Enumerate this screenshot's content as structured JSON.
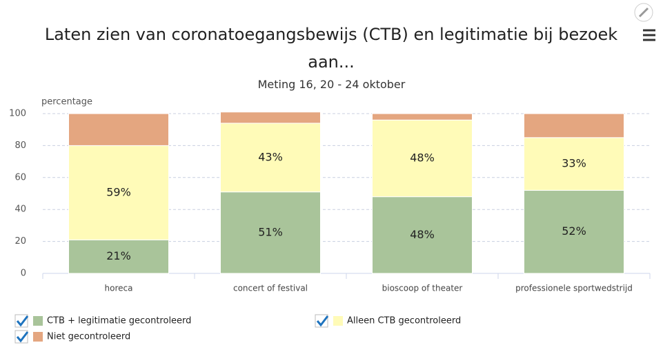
{
  "chart_data": {
    "type": "stacked_bar",
    "title": "Laten zien van coronatoegangsbewijs (CTB) en legitimatie bij bezoek aan...",
    "subtitle": "Meting 16, 20 - 24 oktober",
    "y_axis_label": "percentage",
    "categories": [
      "horeca",
      "concert of festival",
      "bioscoop of theater",
      "professionele sportwedstrijd"
    ],
    "series": [
      {
        "name": "CTB + legitimatie gecontroleerd",
        "color": "#a9c49a",
        "values": [
          21,
          51,
          48,
          52
        ],
        "value_labels": [
          "21%",
          "51%",
          "48%",
          "52%"
        ]
      },
      {
        "name": "Alleen CTB gecontroleerd",
        "color": "#fffbb8",
        "values": [
          59,
          43,
          48,
          33
        ],
        "value_labels": [
          "59%",
          "43%",
          "48%",
          "33%"
        ]
      },
      {
        "name": "Niet gecontroleerd",
        "color": "#e4a680",
        "values": [
          20,
          7,
          4,
          15
        ]
      }
    ],
    "ylim": [
      0,
      100
    ],
    "yticks": [
      0,
      20,
      40,
      60,
      80,
      100
    ],
    "grid": true
  }
}
